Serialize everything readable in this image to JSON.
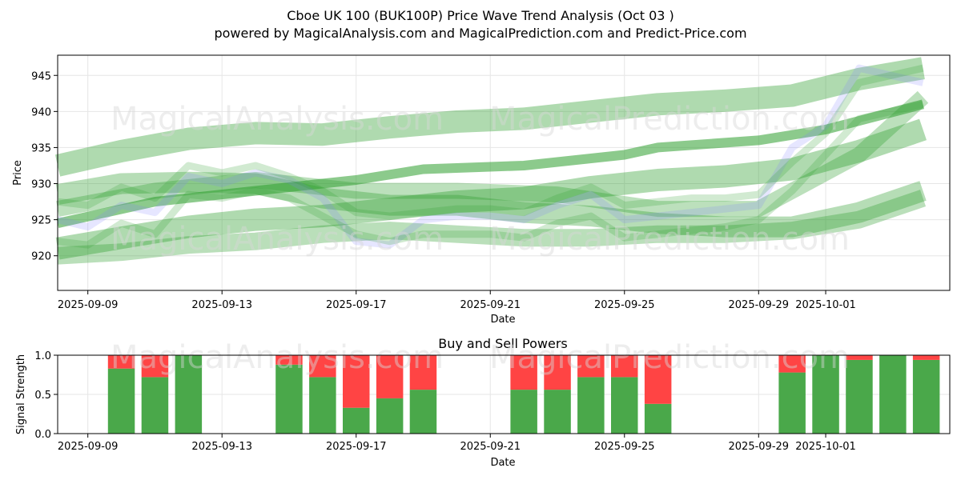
{
  "title_line1": "Cboe UK 100 (BUK100P) Price Wave Trend Analysis (Oct 03 )",
  "title_line2": "powered by MagicalAnalysis.com and MagicalPrediction.com and Predict-Price.com",
  "watermarks": [
    "MagicalAnalysis.com",
    "MagicalPrediction.com"
  ],
  "colors": {
    "band_green": "#2e9e2e",
    "band_blue": "#8080ff",
    "buy": "#4aa84a",
    "sell": "#ff4444",
    "grid": "#e6e6e6"
  },
  "chart_data": [
    {
      "type": "line",
      "title": "",
      "xlabel": "Date",
      "ylabel": "Price",
      "ylim": [
        915.2,
        947.8
      ],
      "xlim_days": [
        -0.9,
        25.7
      ],
      "x_ticks": [
        {
          "day": 0,
          "label": "2025-09-09"
        },
        {
          "day": 4,
          "label": "2025-09-13"
        },
        {
          "day": 8,
          "label": "2025-09-17"
        },
        {
          "day": 12,
          "label": "2025-09-21"
        },
        {
          "day": 16,
          "label": "2025-09-25"
        },
        {
          "day": 20,
          "label": "2025-09-29"
        },
        {
          "day": 22,
          "label": "2025-10-01"
        }
      ],
      "y_ticks": [
        920,
        925,
        930,
        935,
        940,
        945
      ],
      "bands": [
        {
          "color": "green",
          "width": 28,
          "opacity": 0.38,
          "x": [
            -0.9,
            1,
            3,
            5,
            7,
            9,
            11,
            13,
            15,
            17,
            19,
            21,
            23,
            24.9
          ],
          "y": [
            932.5,
            934.5,
            936.2,
            937.0,
            936.8,
            937.8,
            938.6,
            939.0,
            940.0,
            941.0,
            941.5,
            942.2,
            944.5,
            946.0
          ]
        },
        {
          "color": "green",
          "width": 28,
          "opacity": 0.38,
          "x": [
            -0.9,
            1,
            3,
            5,
            7,
            9,
            11,
            13,
            15,
            17,
            19,
            21,
            23,
            24.9
          ],
          "y": [
            921.0,
            922.5,
            924.0,
            925.0,
            925.5,
            926.5,
            927.5,
            928.0,
            929.5,
            930.5,
            931.0,
            932.0,
            934.5,
            937.5
          ]
        },
        {
          "color": "green",
          "width": 26,
          "opacity": 0.35,
          "x": [
            -0.9,
            1,
            3,
            5,
            7,
            9,
            11,
            13,
            15,
            17,
            19,
            21,
            23,
            24.9
          ],
          "y": [
            928.5,
            930.0,
            930.2,
            930.0,
            928.0,
            927.0,
            927.0,
            926.0,
            925.5,
            924.5,
            924.0,
            924.0,
            926.0,
            929.0
          ]
        },
        {
          "color": "green",
          "width": 22,
          "opacity": 0.33,
          "x": [
            -0.9,
            1,
            3,
            5,
            7,
            9,
            11,
            13,
            15,
            17,
            19,
            21,
            23,
            24.9
          ],
          "y": [
            920.0,
            920.5,
            921.5,
            922.0,
            923.0,
            923.5,
            923.0,
            922.5,
            922.5,
            923.0,
            923.0,
            923.5,
            925.0,
            928.0
          ]
        },
        {
          "color": "green",
          "width": 20,
          "opacity": 0.32,
          "x": [
            -0.9,
            2,
            5,
            8,
            11,
            14,
            17,
            20,
            23,
            24.9
          ],
          "y": [
            926.5,
            929.0,
            930.5,
            929.0,
            929.0,
            928.5,
            926.5,
            926.5,
            934.0,
            942.0
          ]
        },
        {
          "color": "green",
          "width": 12,
          "opacity": 0.55,
          "x": [
            -0.9,
            2,
            5,
            8,
            10,
            13,
            16,
            17,
            20,
            22,
            24.9
          ],
          "y": [
            924.5,
            927.5,
            929.0,
            930.5,
            932.0,
            932.5,
            934.0,
            935.0,
            936.0,
            937.5,
            941.0
          ]
        },
        {
          "color": "blue",
          "width": 9,
          "opacity": 0.2,
          "x": [
            -0.9,
            0,
            1,
            2,
            3,
            4,
            5,
            6,
            7,
            8,
            9,
            10,
            11,
            12,
            13,
            14,
            15,
            16,
            17,
            18,
            19,
            20,
            21,
            22,
            23,
            24.9
          ],
          "y": [
            925.0,
            924.0,
            927.0,
            926.0,
            931.0,
            930.0,
            931.5,
            930.5,
            928.0,
            922.0,
            921.5,
            925.0,
            925.5,
            925.5,
            925.0,
            927.0,
            928.5,
            925.0,
            925.5,
            926.0,
            926.5,
            927.0,
            935.0,
            938.0,
            946.0,
            944.0
          ]
        },
        {
          "color": "green",
          "width": 9,
          "opacity": 0.22,
          "x": [
            -0.9,
            0,
            1,
            2,
            3,
            4,
            5,
            6,
            7,
            8,
            9,
            10,
            11,
            12,
            13,
            14,
            15,
            16,
            17,
            18,
            19,
            20,
            21,
            22,
            23,
            24.9
          ],
          "y": [
            922.0,
            921.5,
            924.5,
            923.0,
            928.5,
            928.0,
            929.0,
            928.0,
            925.5,
            923.0,
            922.0,
            923.0,
            923.0,
            923.0,
            922.5,
            924.5,
            925.5,
            922.5,
            923.0,
            923.5,
            924.0,
            925.0,
            929.0,
            934.0,
            939.0,
            941.0
          ]
        },
        {
          "color": "green",
          "width": 9,
          "opacity": 0.22,
          "x": [
            -0.9,
            0,
            1,
            2,
            3,
            4,
            5,
            6,
            7,
            8,
            9,
            10,
            11,
            12,
            13,
            14,
            15,
            16,
            17,
            18,
            19,
            20,
            21,
            22,
            23,
            24.9
          ],
          "y": [
            927.5,
            927.0,
            929.5,
            928.0,
            932.5,
            931.5,
            932.5,
            931.0,
            929.0,
            926.0,
            925.5,
            926.0,
            926.5,
            926.5,
            926.0,
            928.0,
            929.5,
            927.0,
            927.5,
            928.0,
            928.0,
            928.5,
            933.0,
            937.0,
            944.0,
            946.0
          ]
        }
      ]
    },
    {
      "type": "bar",
      "title": "Buy and Sell Powers",
      "xlabel": "Date",
      "ylabel": "Signal Strength",
      "ylim": [
        0,
        1.0
      ],
      "xlim_days": [
        -0.9,
        25.7
      ],
      "x_ticks": [
        {
          "day": 0,
          "label": "2025-09-09"
        },
        {
          "day": 4,
          "label": "2025-09-13"
        },
        {
          "day": 8,
          "label": "2025-09-17"
        },
        {
          "day": 12,
          "label": "2025-09-21"
        },
        {
          "day": 16,
          "label": "2025-09-25"
        },
        {
          "day": 20,
          "label": "2025-09-29"
        },
        {
          "day": 22,
          "label": "2025-10-01"
        }
      ],
      "y_ticks": [
        0.0,
        0.5,
        1.0
      ],
      "series": [
        {
          "name": "Buy",
          "days": [
            1,
            2,
            3,
            6,
            7,
            8,
            9,
            10,
            13,
            14,
            15,
            16,
            17,
            21,
            22,
            23,
            24,
            25
          ],
          "values": [
            0.83,
            0.72,
            1.0,
            0.88,
            0.72,
            0.33,
            0.45,
            0.56,
            0.56,
            0.56,
            0.72,
            0.72,
            0.38,
            0.78,
            1.0,
            0.94,
            1.0,
            0.94
          ]
        },
        {
          "name": "Sell",
          "days": [
            1,
            2,
            3,
            6,
            7,
            8,
            9,
            10,
            13,
            14,
            15,
            16,
            17,
            21,
            22,
            23,
            24,
            25
          ],
          "values": [
            0.17,
            0.28,
            0.0,
            0.12,
            0.28,
            0.67,
            0.55,
            0.44,
            0.44,
            0.44,
            0.28,
            0.28,
            0.62,
            0.22,
            0.0,
            0.06,
            0.0,
            0.06
          ]
        }
      ]
    }
  ]
}
